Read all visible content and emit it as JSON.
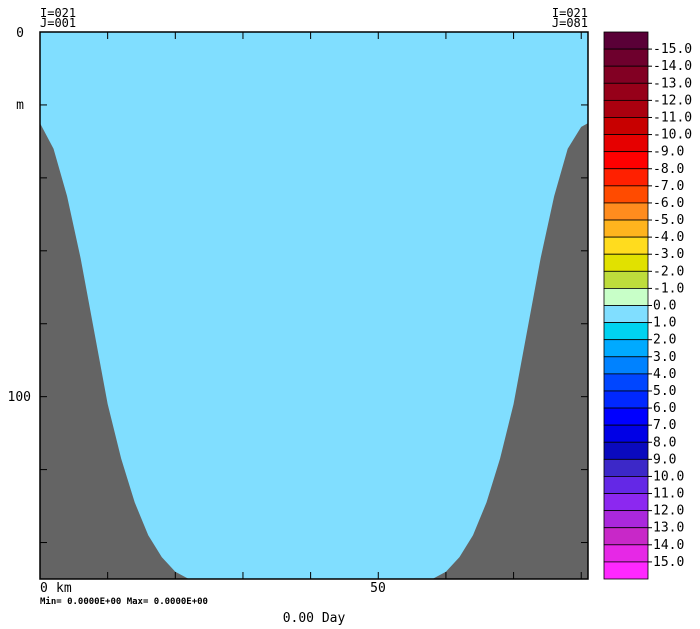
{
  "chart_data": {
    "type": "heatmap",
    "corner_labels": {
      "top_left": [
        "I=021",
        "J=001"
      ],
      "top_right": [
        "I=021",
        "J=081"
      ]
    },
    "time_label": "0.00 Day",
    "minmax_label": "Min= 0.0000E+00  Max= 0.0000E+00",
    "y_axis": {
      "unit_label": "m",
      "range": [
        0,
        150
      ],
      "inverted": true,
      "tick_labels": [
        {
          "value": 0,
          "label": "0"
        },
        {
          "value": 100,
          "label": "100"
        }
      ],
      "ticks": [
        0,
        20,
        40,
        60,
        80,
        100,
        120,
        140
      ]
    },
    "x_axis": {
      "unit_label": "km",
      "range": [
        0,
        81
      ],
      "tick_labels": [
        {
          "value": 0,
          "label": "0"
        },
        {
          "value": 50,
          "label": "50"
        }
      ],
      "ticks": [
        0,
        10,
        20,
        30,
        40,
        50,
        60,
        70,
        80
      ]
    },
    "field_value": 0.0,
    "field_color": "#80DEFF",
    "land_color": "#646464",
    "bathymetry": [
      [
        0,
        25
      ],
      [
        2,
        32
      ],
      [
        4,
        45
      ],
      [
        6,
        62
      ],
      [
        8,
        82
      ],
      [
        10,
        102
      ],
      [
        12,
        117
      ],
      [
        14,
        129
      ],
      [
        16,
        138
      ],
      [
        18,
        144
      ],
      [
        20,
        148
      ],
      [
        22,
        150
      ],
      [
        30,
        150
      ],
      [
        40,
        150
      ],
      [
        50,
        150
      ],
      [
        55,
        150
      ],
      [
        58,
        150
      ],
      [
        60,
        148
      ],
      [
        62,
        144
      ],
      [
        64,
        138
      ],
      [
        66,
        129
      ],
      [
        68,
        117
      ],
      [
        70,
        102
      ],
      [
        72,
        82
      ],
      [
        74,
        62
      ],
      [
        76,
        45
      ],
      [
        78,
        32
      ],
      [
        80,
        26
      ],
      [
        81,
        25
      ]
    ],
    "colorbar": {
      "labels": [
        "-15.0",
        "-14.0",
        "-13.0",
        "-12.0",
        "-11.0",
        "-10.0",
        "-9.0",
        "-8.0",
        "-7.0",
        "-6.0",
        "-5.0",
        "-4.0",
        "-3.0",
        "-2.0",
        "-1.0",
        "0.0",
        "1.0",
        "2.0",
        "3.0",
        "4.0",
        "5.0",
        "6.0",
        "7.0",
        "8.0",
        "9.0",
        "10.0",
        "11.0",
        "12.0",
        "13.0",
        "14.0",
        "15.0"
      ],
      "colors": [
        "#5A0037",
        "#6E002D",
        "#820023",
        "#960019",
        "#AA000F",
        "#C80000",
        "#E60000",
        "#FF0000",
        "#FF2000",
        "#FF4B00",
        "#FF8C1E",
        "#FFB41E",
        "#FFDC1E",
        "#E1E100",
        "#BEDC3C",
        "#C8FFC8",
        "#80DEFF",
        "#00D2F0",
        "#00AAFF",
        "#0082FF",
        "#0046FF",
        "#0028FF",
        "#0000FF",
        "#0000E6",
        "#0A0ABE",
        "#3C28C8",
        "#6428E6",
        "#8C28F0",
        "#AA28DC",
        "#C828C8",
        "#E628E6",
        "#FF28FF"
      ]
    }
  }
}
